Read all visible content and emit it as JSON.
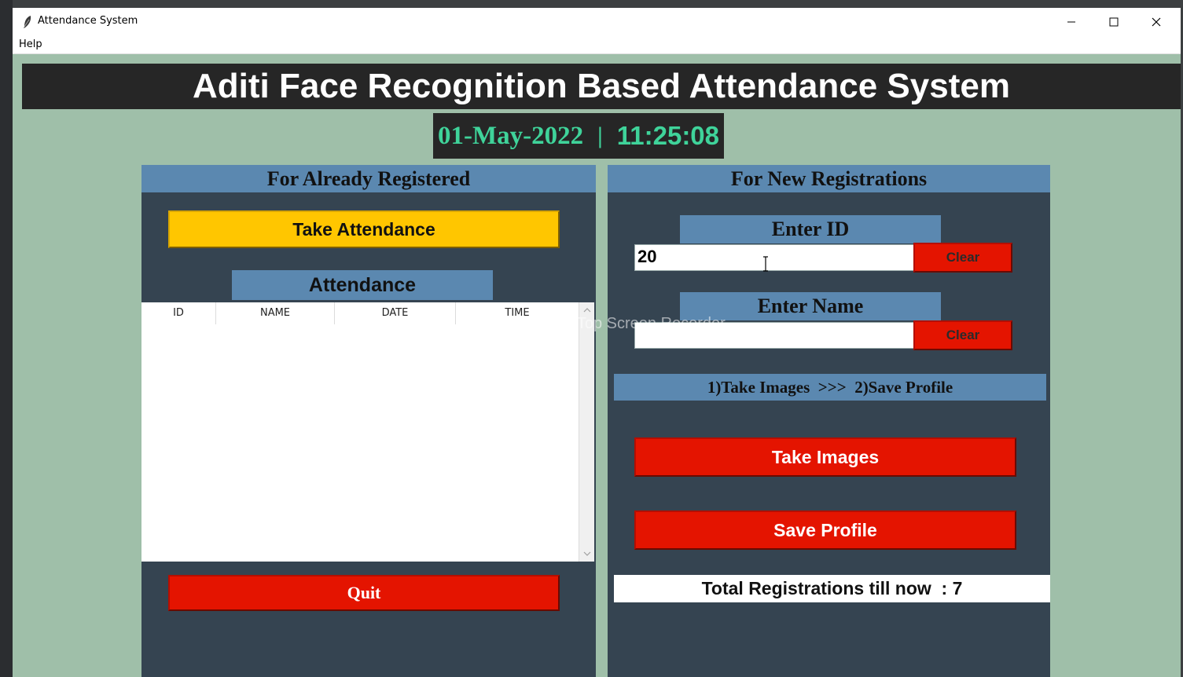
{
  "window": {
    "title": "Attendance System"
  },
  "menu": {
    "help": "Help"
  },
  "header": {
    "title": "Aditi Face Recognition Based Attendance System"
  },
  "clock": {
    "date": "01-May-2022",
    "separator": "|",
    "time": "11:25:08"
  },
  "left_panel": {
    "title": "For Already Registered",
    "take_attendance_label": "Take Attendance",
    "attendance_label": "Attendance",
    "columns": [
      "ID",
      "NAME",
      "DATE",
      "TIME"
    ],
    "quit_label": "Quit"
  },
  "right_panel": {
    "title": "For New Registrations",
    "enter_id_label": "Enter ID",
    "id_value": "20",
    "clear_label": "Clear",
    "enter_name_label": "Enter Name",
    "name_value": "",
    "steps_label": "1)Take Images  >>>  2)Save Profile",
    "take_images_label": "Take Images",
    "save_profile_label": "Save Profile",
    "total_label": "Total Registrations till now  : 7"
  },
  "watermark": "Recorded with iTop Screen Recorder",
  "colors": {
    "window_bg": "#9fbfa9",
    "panel_bg": "#354451",
    "panel_header": "#5b88b0",
    "header_bg": "#262626",
    "clock_text": "#3fd39a",
    "yellow_button": "#ffc600",
    "red_button": "#e41400"
  }
}
